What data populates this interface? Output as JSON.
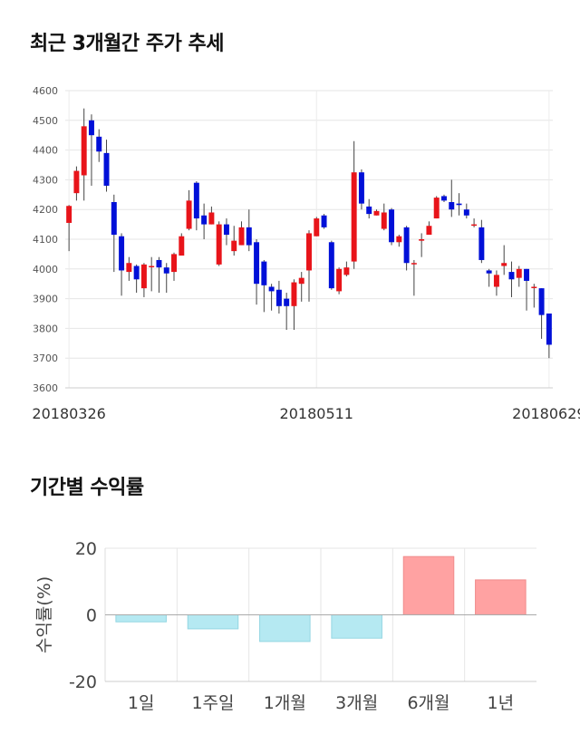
{
  "section1": {
    "title": "최근 3개월간 주가 추세"
  },
  "section2": {
    "title": "기간별 수익률"
  },
  "chart_data": [
    {
      "type": "candlestick",
      "title": "최근 3개월간 주가 추세",
      "ylim": [
        3600,
        4600
      ],
      "yticks": [
        3600,
        3700,
        3800,
        3900,
        4000,
        4100,
        4200,
        4300,
        4400,
        4500,
        4600
      ],
      "xtick_labels": [
        "20180326",
        "20180511",
        "20180629"
      ],
      "xtick_indices": [
        0,
        33,
        64
      ],
      "grid": true,
      "up_color": "#e8141a",
      "down_color": "#0010d8",
      "candles": [
        [
          4155,
          4212,
          4060,
          4215
        ],
        [
          4255,
          4330,
          4230,
          4345
        ],
        [
          4315,
          4480,
          4230,
          4540
        ],
        [
          4500,
          4450,
          4280,
          4520
        ],
        [
          4445,
          4395,
          4360,
          4470
        ],
        [
          4390,
          4280,
          4260,
          4435
        ],
        [
          4225,
          4115,
          3990,
          4250
        ],
        [
          4110,
          3995,
          3910,
          4120
        ],
        [
          3990,
          4020,
          3960,
          4040
        ],
        [
          4010,
          3965,
          3920,
          4015
        ],
        [
          3935,
          4015,
          3905,
          4020
        ],
        [
          4010,
          4010,
          3925,
          4040
        ],
        [
          4030,
          4005,
          3920,
          4040
        ],
        [
          4005,
          3985,
          3920,
          4020
        ],
        [
          3990,
          4050,
          3960,
          4055
        ],
        [
          4045,
          4110,
          4050,
          4120
        ],
        [
          4135,
          4230,
          4130,
          4265
        ],
        [
          4290,
          4170,
          4130,
          4295
        ],
        [
          4180,
          4150,
          4100,
          4220
        ],
        [
          4150,
          4190,
          4150,
          4210
        ],
        [
          4015,
          4150,
          4010,
          4160
        ],
        [
          4150,
          4115,
          4080,
          4170
        ],
        [
          4060,
          4095,
          4045,
          4145
        ],
        [
          4080,
          4140,
          4080,
          4160
        ],
        [
          4140,
          4080,
          4060,
          4200
        ],
        [
          4090,
          3950,
          3880,
          4100
        ],
        [
          4025,
          3945,
          3855,
          4030
        ],
        [
          3940,
          3925,
          3860,
          3950
        ],
        [
          3930,
          3875,
          3850,
          3960
        ],
        [
          3900,
          3875,
          3795,
          3920
        ],
        [
          3875,
          3955,
          3795,
          3965
        ],
        [
          3950,
          3970,
          3890,
          3990
        ],
        [
          3995,
          4120,
          3890,
          4130
        ],
        [
          4110,
          4170,
          4110,
          4175
        ],
        [
          4180,
          4140,
          4135,
          4185
        ],
        [
          4090,
          3935,
          3930,
          4095
        ],
        [
          3925,
          4000,
          3915,
          4005
        ],
        [
          3980,
          4005,
          3975,
          4025
        ],
        [
          4025,
          4325,
          4000,
          4430
        ],
        [
          4325,
          4220,
          4200,
          4335
        ],
        [
          4210,
          4185,
          4170,
          4235
        ],
        [
          4180,
          4195,
          4180,
          4200
        ],
        [
          4135,
          4190,
          4130,
          4220
        ],
        [
          4200,
          4090,
          4080,
          4205
        ],
        [
          4090,
          4110,
          4075,
          4115
        ],
        [
          4140,
          4020,
          3995,
          4145
        ],
        [
          4020,
          4020,
          3910,
          4030
        ],
        [
          4095,
          4100,
          4040,
          4120
        ],
        [
          4115,
          4145,
          4120,
          4160
        ],
        [
          4170,
          4240,
          4170,
          4245
        ],
        [
          4245,
          4230,
          4225,
          4250
        ],
        [
          4225,
          4200,
          4175,
          4300
        ],
        [
          4220,
          4215,
          4180,
          4255
        ],
        [
          4200,
          4180,
          4170,
          4220
        ],
        [
          4150,
          4150,
          4140,
          4170
        ],
        [
          4140,
          4030,
          4020,
          4165
        ],
        [
          3995,
          3985,
          3940,
          4000
        ],
        [
          3940,
          3980,
          3910,
          3995
        ],
        [
          4010,
          4020,
          3980,
          4080
        ],
        [
          3990,
          3965,
          3905,
          4025
        ],
        [
          3970,
          4000,
          3940,
          4010
        ],
        [
          4000,
          3960,
          3860,
          4000
        ],
        [
          3940,
          3940,
          3870,
          3950
        ],
        [
          3935,
          3845,
          3765,
          3935
        ],
        [
          3850,
          3745,
          3700,
          3850
        ]
      ]
    },
    {
      "type": "bar",
      "title": "기간별 수익률",
      "categories": [
        "1일",
        "1주일",
        "1개월",
        "3개월",
        "6개월",
        "1년"
      ],
      "values": [
        -2.1,
        -4.2,
        -8.0,
        -7.0,
        17.5,
        10.5
      ],
      "ylabel": "수익률(%)",
      "ylim": [
        -20,
        20
      ],
      "yticks": [
        20,
        0,
        -20
      ],
      "grid": true,
      "negative_color": "#b5e9f2",
      "positive_color": "#ffa2a2"
    }
  ]
}
